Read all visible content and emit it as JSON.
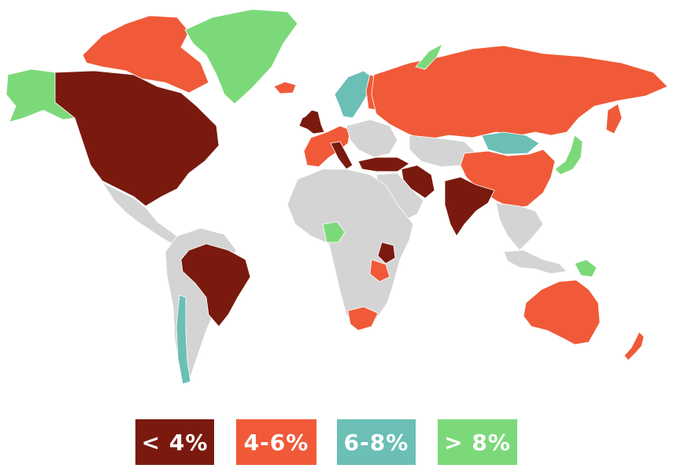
{
  "colors": {
    "background": "#ffffff",
    "no_data": "#d4d4d4",
    "border": "#ffffff"
  },
  "legend": {
    "items": [
      {
        "label": "< 4%",
        "color": "#7a1a0f"
      },
      {
        "label": "4-6%",
        "color": "#f05a38"
      },
      {
        "label": "6-8%",
        "color": "#6bbfb5"
      },
      {
        "label": "> 8%",
        "color": "#7cd97a"
      }
    ]
  },
  "regions": [
    {
      "id": "alaska",
      "bin": 3
    },
    {
      "id": "canada-usa",
      "bin": 0
    },
    {
      "id": "canadian-arctic",
      "bin": 1
    },
    {
      "id": "greenland",
      "bin": 3
    },
    {
      "id": "iceland",
      "bin": 1
    },
    {
      "id": "mexico-central-america",
      "bin": -1
    },
    {
      "id": "south-america",
      "bin": -1
    },
    {
      "id": "brazil",
      "bin": 0
    },
    {
      "id": "chile",
      "bin": 2
    },
    {
      "id": "uk-ireland",
      "bin": 0
    },
    {
      "id": "western-europe",
      "bin": 1
    },
    {
      "id": "italy",
      "bin": 0
    },
    {
      "id": "central-europe",
      "bin": -1
    },
    {
      "id": "scandinavia",
      "bin": 2
    },
    {
      "id": "finland-baltic",
      "bin": 1
    },
    {
      "id": "russia",
      "bin": 1
    },
    {
      "id": "novaya-zemlya",
      "bin": 3
    },
    {
      "id": "turkey",
      "bin": 0
    },
    {
      "id": "iran",
      "bin": 0
    },
    {
      "id": "central-asia",
      "bin": -1
    },
    {
      "id": "mongolia",
      "bin": 2
    },
    {
      "id": "china",
      "bin": 1
    },
    {
      "id": "india",
      "bin": 0
    },
    {
      "id": "southeast-asia",
      "bin": -1
    },
    {
      "id": "japan",
      "bin": 3
    },
    {
      "id": "kamchatka",
      "bin": 1
    },
    {
      "id": "africa",
      "bin": -1
    },
    {
      "id": "nigeria",
      "bin": 3
    },
    {
      "id": "kenya",
      "bin": 0
    },
    {
      "id": "tanzania",
      "bin": 1
    },
    {
      "id": "south-africa",
      "bin": 1
    },
    {
      "id": "middle-east",
      "bin": -1
    },
    {
      "id": "indonesia",
      "bin": -1
    },
    {
      "id": "papua-new-guinea",
      "bin": 3
    },
    {
      "id": "australia",
      "bin": 1
    },
    {
      "id": "new-zealand",
      "bin": 1
    },
    {
      "id": "israel",
      "bin": 2
    }
  ]
}
